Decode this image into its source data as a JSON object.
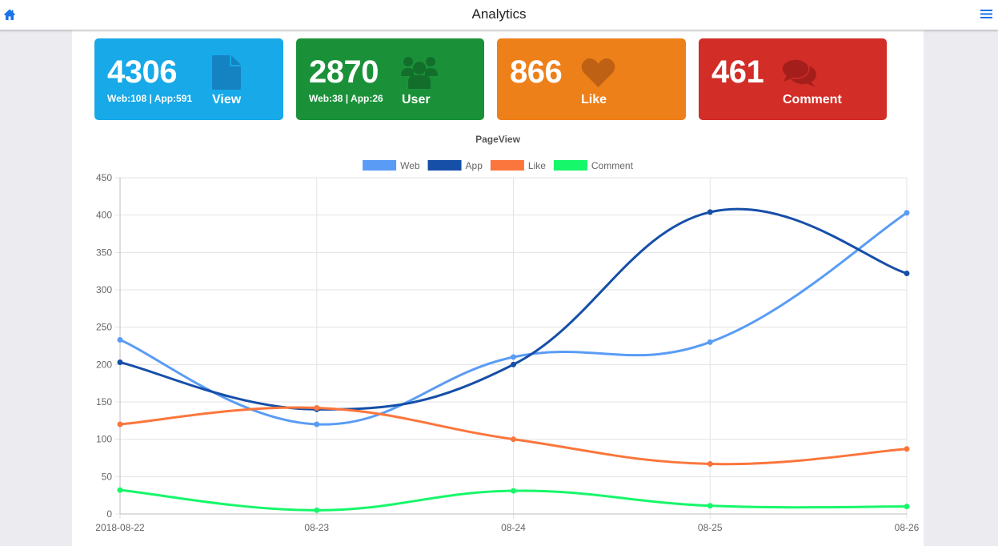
{
  "app": {
    "title": "Analytics"
  },
  "nav": {
    "home_icon": "home-icon",
    "menu_icon": "hamburger-menu-icon"
  },
  "stats": [
    {
      "count": "4306",
      "detail": "Web:108 | App:591",
      "label": "View",
      "icon": "file-icon",
      "color": "#17a9e8",
      "icon_color": "#1582c2"
    },
    {
      "count": "2870",
      "detail": "Web:38 | App:26",
      "label": "User",
      "icon": "users-icon",
      "color": "#1a9139",
      "icon_color": "#136e2b"
    },
    {
      "count": "866",
      "detail": "",
      "label": "Like",
      "icon": "heart-icon",
      "color": "#ee801a",
      "icon_color": "#bf6114"
    },
    {
      "count": "461",
      "detail": "",
      "label": "Comment",
      "icon": "comments-icon",
      "color": "#d22d27",
      "icon_color": "#a41e1b"
    }
  ],
  "chart_data": {
    "type": "line",
    "title": "PageView",
    "categories": [
      "2018-08-22",
      "08-23",
      "08-24",
      "08-25",
      "08-26"
    ],
    "ylim": [
      0,
      450
    ],
    "yticks": [
      0,
      50,
      100,
      150,
      200,
      250,
      300,
      350,
      400,
      450
    ],
    "grid": true,
    "legend": "top",
    "series": [
      {
        "name": "Web",
        "color": "#5a9cf5",
        "values": [
          233,
          120,
          210,
          230,
          403
        ]
      },
      {
        "name": "App",
        "color": "#164fa8",
        "values": [
          203,
          140,
          200,
          404,
          322
        ]
      },
      {
        "name": "Like",
        "color": "#fb763c",
        "values": [
          120,
          142,
          100,
          67,
          87
        ]
      },
      {
        "name": "Comment",
        "color": "#17f76a",
        "values": [
          32,
          5,
          31,
          11,
          10
        ]
      }
    ]
  }
}
